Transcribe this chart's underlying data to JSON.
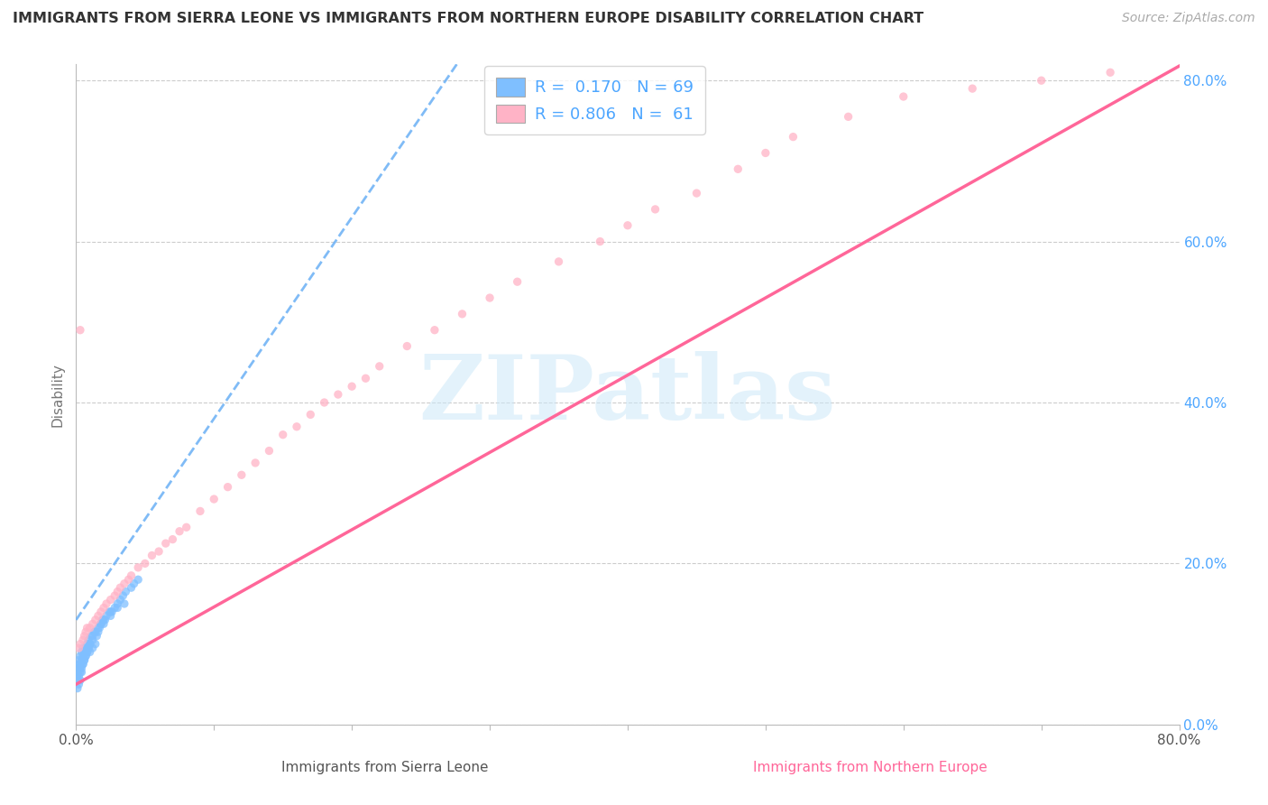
{
  "title": "IMMIGRANTS FROM SIERRA LEONE VS IMMIGRANTS FROM NORTHERN EUROPE DISABILITY CORRELATION CHART",
  "source": "Source: ZipAtlas.com",
  "xlabel_sierra": "Immigrants from Sierra Leone",
  "xlabel_northern": "Immigrants from Northern Europe",
  "ylabel": "Disability",
  "R_sierra": 0.17,
  "N_sierra": 69,
  "R_northern": 0.806,
  "N_northern": 61,
  "color_sierra": "#7fbfff",
  "color_northern": "#ffb3c6",
  "trendline_sierra_color": "#6ab0f5",
  "trendline_northern_color": "#ff6699",
  "xlim": [
    0.0,
    0.8
  ],
  "ylim": [
    0.0,
    0.82
  ],
  "ytick_positions": [
    0.0,
    0.2,
    0.4,
    0.6,
    0.8
  ],
  "ytick_labels_right": [
    "0.0%",
    "20.0%",
    "40.0%",
    "60.0%",
    "80.0%"
  ],
  "xtick_labels": [
    "0.0%",
    "",
    "",
    "",
    "",
    "",
    "",
    "",
    "80.0%"
  ],
  "watermark": "ZIPatlas",
  "sierra_x": [
    0.0005,
    0.001,
    0.001,
    0.0015,
    0.002,
    0.002,
    0.002,
    0.003,
    0.003,
    0.003,
    0.004,
    0.004,
    0.004,
    0.005,
    0.005,
    0.005,
    0.006,
    0.006,
    0.007,
    0.007,
    0.008,
    0.008,
    0.009,
    0.009,
    0.01,
    0.01,
    0.011,
    0.012,
    0.012,
    0.013,
    0.014,
    0.015,
    0.016,
    0.017,
    0.018,
    0.019,
    0.02,
    0.021,
    0.022,
    0.024,
    0.025,
    0.026,
    0.028,
    0.03,
    0.032,
    0.034,
    0.036,
    0.04,
    0.042,
    0.045,
    0.001,
    0.002,
    0.003,
    0.003,
    0.004,
    0.005,
    0.006,
    0.007,
    0.008,
    0.009,
    0.01,
    0.012,
    0.014,
    0.016,
    0.018,
    0.02,
    0.025,
    0.03,
    0.035
  ],
  "sierra_y": [
    0.06,
    0.055,
    0.065,
    0.07,
    0.06,
    0.075,
    0.08,
    0.065,
    0.075,
    0.085,
    0.07,
    0.08,
    0.09,
    0.075,
    0.085,
    0.095,
    0.08,
    0.09,
    0.085,
    0.095,
    0.09,
    0.1,
    0.095,
    0.105,
    0.09,
    0.1,
    0.11,
    0.095,
    0.105,
    0.115,
    0.1,
    0.11,
    0.115,
    0.12,
    0.125,
    0.13,
    0.125,
    0.13,
    0.135,
    0.14,
    0.135,
    0.14,
    0.145,
    0.15,
    0.155,
    0.16,
    0.165,
    0.17,
    0.175,
    0.18,
    0.045,
    0.05,
    0.055,
    0.07,
    0.065,
    0.075,
    0.08,
    0.085,
    0.09,
    0.095,
    0.1,
    0.11,
    0.115,
    0.12,
    0.125,
    0.13,
    0.14,
    0.145,
    0.15
  ],
  "northern_x": [
    0.002,
    0.003,
    0.005,
    0.006,
    0.007,
    0.008,
    0.01,
    0.012,
    0.014,
    0.016,
    0.018,
    0.02,
    0.022,
    0.025,
    0.028,
    0.03,
    0.032,
    0.035,
    0.038,
    0.04,
    0.045,
    0.05,
    0.055,
    0.06,
    0.065,
    0.07,
    0.075,
    0.08,
    0.09,
    0.1,
    0.11,
    0.12,
    0.13,
    0.14,
    0.15,
    0.16,
    0.17,
    0.18,
    0.19,
    0.2,
    0.21,
    0.22,
    0.24,
    0.26,
    0.28,
    0.3,
    0.32,
    0.35,
    0.38,
    0.4,
    0.42,
    0.45,
    0.48,
    0.5,
    0.52,
    0.56,
    0.6,
    0.65,
    0.7,
    0.75,
    0.003
  ],
  "northern_y": [
    0.095,
    0.1,
    0.105,
    0.11,
    0.115,
    0.12,
    0.12,
    0.125,
    0.13,
    0.135,
    0.14,
    0.145,
    0.15,
    0.155,
    0.16,
    0.165,
    0.17,
    0.175,
    0.18,
    0.185,
    0.195,
    0.2,
    0.21,
    0.215,
    0.225,
    0.23,
    0.24,
    0.245,
    0.265,
    0.28,
    0.295,
    0.31,
    0.325,
    0.34,
    0.36,
    0.37,
    0.385,
    0.4,
    0.41,
    0.42,
    0.43,
    0.445,
    0.47,
    0.49,
    0.51,
    0.53,
    0.55,
    0.575,
    0.6,
    0.62,
    0.64,
    0.66,
    0.69,
    0.71,
    0.73,
    0.755,
    0.78,
    0.79,
    0.8,
    0.81,
    0.49
  ],
  "background_color": "#ffffff",
  "grid_color": "#cccccc",
  "title_color": "#333333",
  "axis_label_color": "#777777",
  "trendline_sierra_intercept": 0.13,
  "trendline_sierra_slope": 2.5,
  "trendline_northern_intercept": 0.05,
  "trendline_northern_slope": 0.96
}
